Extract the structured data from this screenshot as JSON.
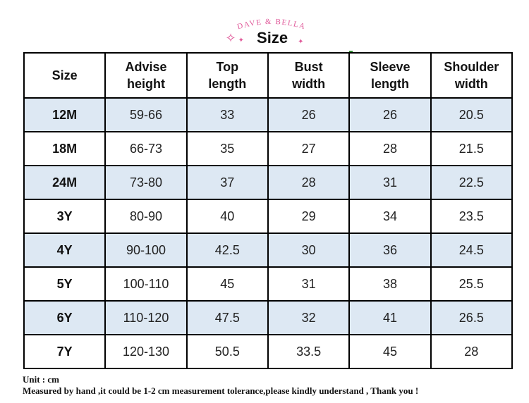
{
  "header": {
    "brand": "DAVE & BELLA",
    "title": "Size",
    "brand_color": "#e05a9a"
  },
  "table": {
    "columns": [
      {
        "line1": "Size",
        "line2": ""
      },
      {
        "line1": "Advise",
        "line2": "height"
      },
      {
        "line1": "Top",
        "line2": "length"
      },
      {
        "line1": "Bust",
        "line2": "width"
      },
      {
        "line1": "Sleeve",
        "line2": "length"
      },
      {
        "line1": "Shoulder",
        "line2": "width"
      }
    ],
    "rows": [
      [
        "12M",
        "59-66",
        "33",
        "26",
        "26",
        "20.5"
      ],
      [
        "18M",
        "66-73",
        "35",
        "27",
        "28",
        "21.5"
      ],
      [
        "24M",
        "73-80",
        "37",
        "28",
        "31",
        "22.5"
      ],
      [
        "3Y",
        "80-90",
        "40",
        "29",
        "34",
        "23.5"
      ],
      [
        "4Y",
        "90-100",
        "42.5",
        "30",
        "36",
        "24.5"
      ],
      [
        "5Y",
        "100-110",
        "45",
        "31",
        "38",
        "25.5"
      ],
      [
        "6Y",
        "110-120",
        "47.5",
        "32",
        "41",
        "26.5"
      ],
      [
        "7Y",
        "120-130",
        "50.5",
        "33.5",
        "45",
        "28"
      ]
    ],
    "shade_color": "#dde8f3"
  },
  "footer": {
    "unit": "Unit : cm",
    "note": "Measured by hand ,it could be 1-2 cm measurement tolerance,please kindly understand , Thank you !"
  }
}
